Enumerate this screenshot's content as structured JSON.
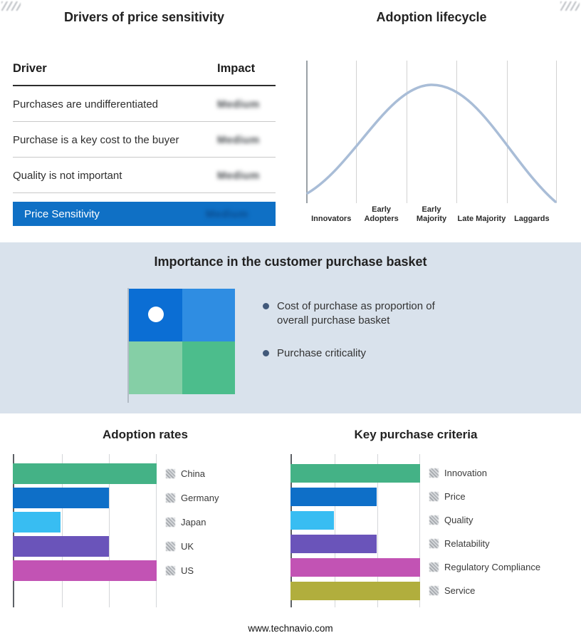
{
  "meta": {
    "footer": "www.technavio.com"
  },
  "drivers": {
    "title": "Drivers of price sensitivity",
    "header": {
      "driver": "Driver",
      "impact": "Impact"
    },
    "rows": [
      {
        "driver": "Purchases are undifferentiated",
        "impact": "Medium"
      },
      {
        "driver": "Purchase is a key cost to the buyer",
        "impact": "Medium"
      },
      {
        "driver": "Quality is not important",
        "impact": "Medium"
      }
    ],
    "summary": {
      "label": "Price Sensitivity",
      "impact": "Medium"
    },
    "accent_color": "#0f70c5"
  },
  "lifecycle": {
    "title": "Adoption lifecycle",
    "stages": [
      "Innovators",
      "Early Adopters",
      "Early Majority",
      "Late Majority",
      "Laggards"
    ],
    "curve_color": "#a9bdd7"
  },
  "basket": {
    "title": "Importance in the customer purchase basket",
    "bullets": [
      "Cost of purchase as proportion of overall purchase basket",
      "Purchase criticality"
    ],
    "band_color": "#d9e2ec",
    "quadrants": [
      {
        "name": "top-left",
        "color": "#0b6ed4"
      },
      {
        "name": "top-right",
        "color": "#2f8de2"
      },
      {
        "name": "bottom-left",
        "color": "#85cfa6"
      },
      {
        "name": "bottom-right",
        "color": "#4cbd8c"
      }
    ]
  },
  "chart_data": [
    {
      "type": "line",
      "title": "Adoption lifecycle",
      "x": [
        "Innovators",
        "Early Adopters",
        "Early Majority",
        "Late Majority",
        "Laggards"
      ],
      "values_normalized": [
        0.05,
        0.6,
        1.0,
        0.6,
        0.05
      ],
      "shape": "bell curve peaking at Early Majority",
      "grid": "vertical-only",
      "legend_position": "none"
    },
    {
      "type": "bar",
      "title": "Adoption rates",
      "orientation": "horizontal",
      "categories": [
        "China",
        "Germany",
        "Japan",
        "UK",
        "US"
      ],
      "values": [
        3,
        2,
        1,
        2,
        3
      ],
      "xlim": [
        0,
        3
      ],
      "grid": "vertical-only",
      "legend_position": "right",
      "colors": [
        "#44b286",
        "#0e6fc8",
        "#38bdf2",
        "#6a54ba",
        "#c253b4"
      ]
    },
    {
      "type": "bar",
      "title": "Key purchase criteria",
      "orientation": "horizontal",
      "categories": [
        "Innovation",
        "Price",
        "Quality",
        "Relatability",
        "Regulatory Compliance",
        "Service"
      ],
      "values": [
        3,
        2,
        1,
        2,
        3,
        3
      ],
      "xlim": [
        0,
        3
      ],
      "grid": "vertical-only",
      "legend_position": "right",
      "colors": [
        "#44b286",
        "#0e6fc8",
        "#38bdf2",
        "#6a54ba",
        "#c253b4",
        "#b1ae3d"
      ]
    }
  ]
}
